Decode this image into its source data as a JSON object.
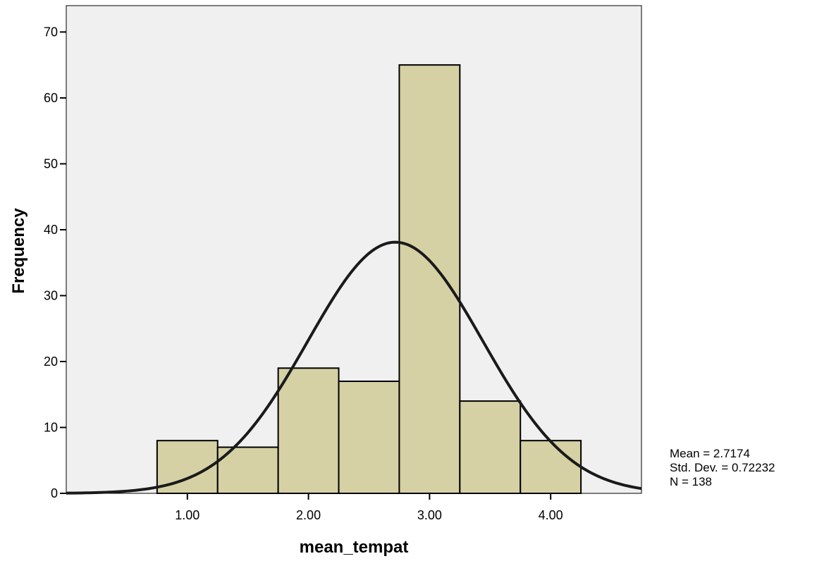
{
  "chart_data": {
    "type": "bar",
    "subtype": "histogram",
    "xlabel": "mean_tempat",
    "ylabel": "Frequency",
    "xlim": [
      0.0,
      4.75
    ],
    "ylim": [
      0,
      74
    ],
    "grid": false,
    "background": "#f0f0f0",
    "bar_color": "#d5d1a5",
    "bar_edge_color": "#000000",
    "curve_color": "#1a1a1a",
    "x_ticks": [
      {
        "value": 1,
        "label": "1.00"
      },
      {
        "value": 2,
        "label": "2.00"
      },
      {
        "value": 3,
        "label": "3.00"
      },
      {
        "value": 4,
        "label": "4.00"
      }
    ],
    "y_ticks": [
      {
        "value": 0,
        "label": "0"
      },
      {
        "value": 10,
        "label": "10"
      },
      {
        "value": 20,
        "label": "20"
      },
      {
        "value": 30,
        "label": "30"
      },
      {
        "value": 40,
        "label": "40"
      },
      {
        "value": 50,
        "label": "50"
      },
      {
        "value": 60,
        "label": "60"
      },
      {
        "value": 70,
        "label": "70"
      }
    ],
    "bins": [
      {
        "x0": 0.75,
        "x1": 1.25,
        "count": 8
      },
      {
        "x0": 1.25,
        "x1": 1.75,
        "count": 7
      },
      {
        "x0": 1.75,
        "x1": 2.25,
        "count": 19
      },
      {
        "x0": 2.25,
        "x1": 2.75,
        "count": 17
      },
      {
        "x0": 2.75,
        "x1": 3.25,
        "count": 65
      },
      {
        "x0": 3.25,
        "x1": 3.75,
        "count": 14
      },
      {
        "x0": 3.75,
        "x1": 4.25,
        "count": 8
      }
    ],
    "normal_curve": {
      "mean": 2.7174,
      "std": 0.72232,
      "n": 138,
      "bin_width": 0.5
    }
  },
  "stats": {
    "mean": "Mean = 2.7174",
    "std": "Std. Dev. = 0.72232",
    "n": "N = 138"
  }
}
